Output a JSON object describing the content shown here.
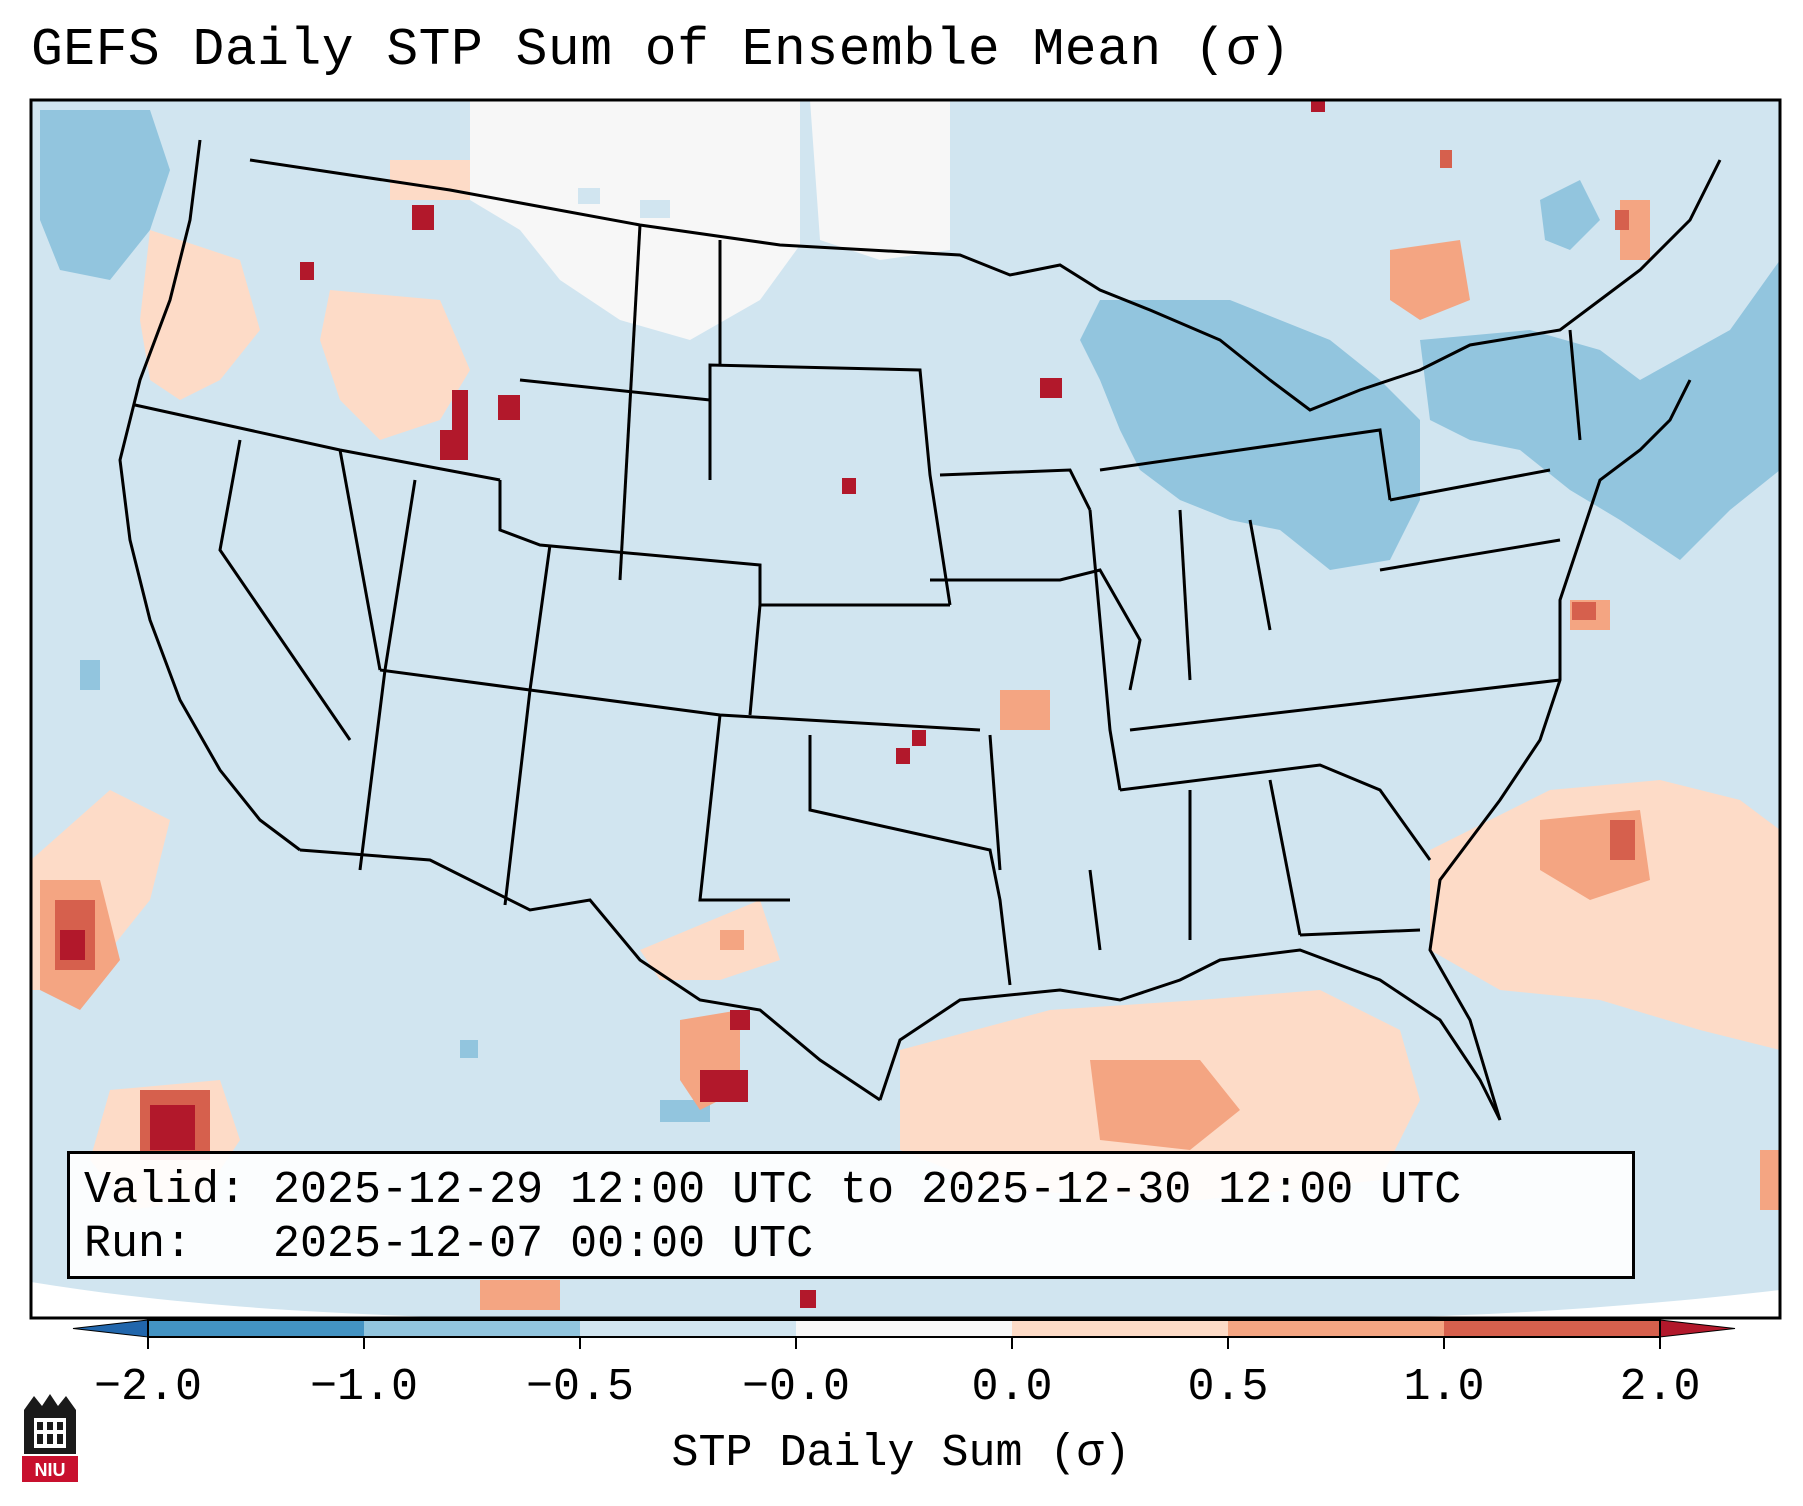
{
  "title": "GEFS Daily STP Sum of Ensemble Mean (σ)",
  "info": {
    "valid_label": "Valid:",
    "valid_value": "2025-12-29 12:00 UTC to 2025-12-30 12:00 UTC",
    "run_label": "Run:",
    "run_value": "2025-12-07 00:00 UTC"
  },
  "colorbar": {
    "label": "STP Daily Sum (σ)",
    "ticks": [
      "−2.0",
      "−1.0",
      "−0.5",
      "−0.0",
      "0.0",
      "0.5",
      "1.0",
      "2.0"
    ],
    "colors": [
      "#4393c3",
      "#92c5de",
      "#d1e5f0",
      "#f7f7f7",
      "#fddbc7",
      "#f4a582",
      "#d6604d",
      "#b2182b"
    ],
    "under_color": "#2166ac",
    "over_color": "#b2182b"
  },
  "map": {
    "background_color": "#d1e5f0",
    "outline_color": "#000000"
  },
  "logo": {
    "text": "NIU",
    "color": "#c8102e"
  }
}
